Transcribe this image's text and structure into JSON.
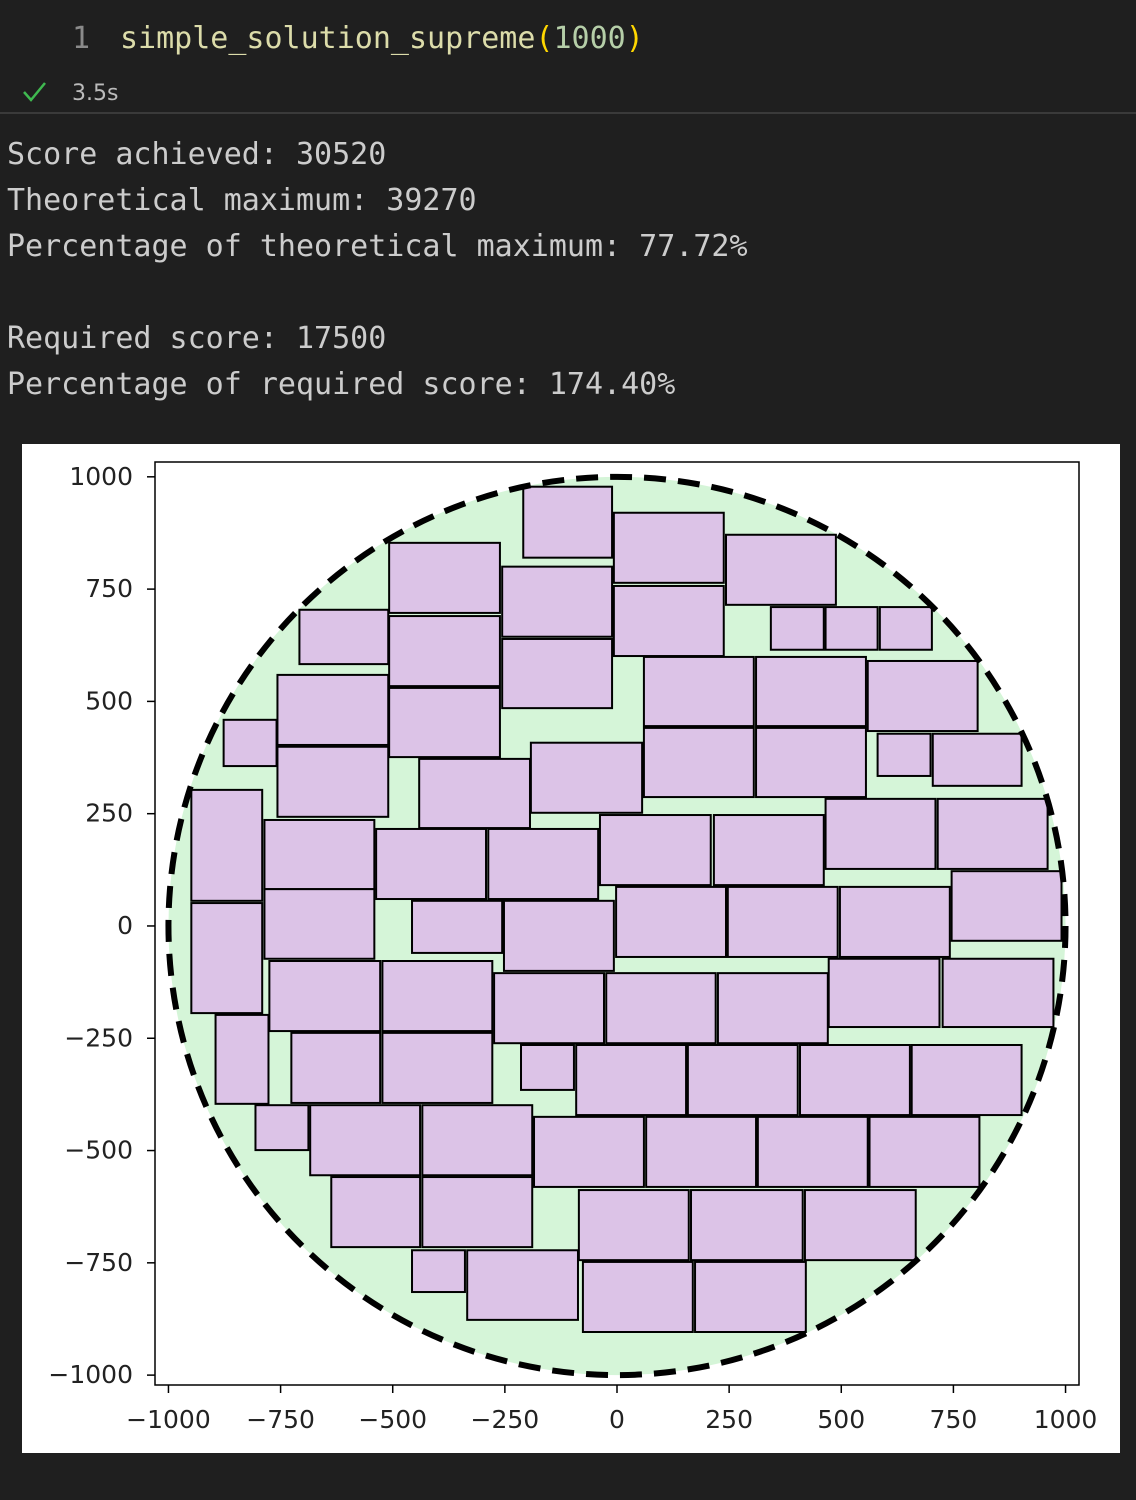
{
  "cell": {
    "line_number": "1",
    "code": [
      "simple_solution_supreme",
      "(",
      "1000",
      ")"
    ],
    "status_time": "3.5s"
  },
  "output": [
    "Score achieved: 30520",
    "Theoretical maximum: 39270",
    "Percentage of theoretical maximum: 77.72%",
    "Required score: 17500",
    "Percentage of required score: 174.40%"
  ],
  "chart_data": {
    "type": "rect_packing",
    "circle_radius": 1000,
    "circle_fill": "#d5f5d8",
    "rect_fill": "#dcc3e7",
    "xlim": [
      -1030,
      1030
    ],
    "ylim": [
      -1022,
      1033
    ],
    "xticks": [
      {
        "value": -1000,
        "label": "−1000"
      },
      {
        "value": -750,
        "label": "−750"
      },
      {
        "value": -500,
        "label": "−500"
      },
      {
        "value": -250,
        "label": "−250"
      },
      0,
      250,
      500,
      750,
      1000
    ],
    "yticks": [
      {
        "value": -1000,
        "label": "−1000"
      },
      {
        "value": -750,
        "label": "−750"
      },
      {
        "value": -500,
        "label": "−500"
      },
      {
        "value": -250,
        "label": "−250"
      },
      0,
      250,
      500,
      750,
      1000
    ],
    "rects": [
      [
        -209,
        820,
        -11,
        978
      ],
      [
        -7,
        764,
        238,
        920
      ],
      [
        243,
        715,
        488,
        871
      ],
      [
        -508,
        697,
        -261,
        853
      ],
      [
        -256,
        644,
        -11,
        800
      ],
      [
        -7,
        601,
        238,
        757
      ],
      [
        343,
        615,
        461,
        710
      ],
      [
        465,
        615,
        581,
        710
      ],
      [
        586,
        615,
        702,
        710
      ],
      [
        -708,
        583,
        -510,
        704
      ],
      [
        -508,
        534,
        -261,
        690
      ],
      [
        -256,
        485,
        -11,
        639
      ],
      [
        60,
        445,
        305,
        599
      ],
      [
        310,
        445,
        555,
        599
      ],
      [
        559,
        434,
        804,
        590
      ],
      [
        -757,
        403,
        -510,
        559
      ],
      [
        -508,
        376,
        -261,
        530
      ],
      [
        -877,
        356,
        -759,
        459
      ],
      [
        60,
        287,
        305,
        441
      ],
      [
        310,
        287,
        555,
        441
      ],
      [
        581,
        334,
        699,
        428
      ],
      [
        704,
        312,
        902,
        428
      ],
      [
        -192,
        252,
        56,
        408
      ],
      [
        -757,
        243,
        -510,
        399
      ],
      [
        -441,
        218,
        -194,
        372
      ],
      [
        -949,
        56,
        -791,
        303
      ],
      [
        465,
        127,
        710,
        283
      ],
      [
        715,
        127,
        960,
        283
      ],
      [
        -38,
        91,
        209,
        247
      ],
      [
        216,
        91,
        461,
        247
      ],
      [
        -786,
        82,
        -541,
        236
      ],
      [
        -537,
        60,
        -292,
        216
      ],
      [
        -287,
        60,
        -42,
        216
      ],
      [
        746,
        -33,
        991,
        122
      ],
      [
        -2,
        -69,
        243,
        87
      ],
      [
        247,
        -69,
        492,
        87
      ],
      [
        497,
        -69,
        742,
        87
      ],
      [
        -786,
        -73,
        -541,
        82
      ],
      [
        -457,
        -60,
        -256,
        56
      ],
      [
        -252,
        -100,
        -7,
        56
      ],
      [
        -949,
        -194,
        -791,
        51
      ],
      [
        472,
        -225,
        719,
        -73
      ],
      [
        726,
        -225,
        973,
        -73
      ],
      [
        -775,
        -234,
        -528,
        -78
      ],
      [
        -523,
        -234,
        -278,
        -78
      ],
      [
        -274,
        -261,
        -29,
        -105
      ],
      [
        -24,
        -261,
        220,
        -105
      ],
      [
        225,
        -261,
        470,
        -105
      ],
      [
        -895,
        -396,
        -777,
        -198
      ],
      [
        -726,
        -394,
        -528,
        -238
      ],
      [
        -523,
        -394,
        -278,
        -238
      ],
      [
        -214,
        -365,
        -96,
        -265
      ],
      [
        -91,
        -421,
        154,
        -265
      ],
      [
        158,
        -421,
        403,
        -265
      ],
      [
        408,
        -421,
        653,
        -265
      ],
      [
        657,
        -421,
        902,
        -265
      ],
      [
        -806,
        -499,
        -688,
        -399
      ],
      [
        -684,
        -555,
        -439,
        -399
      ],
      [
        -434,
        -555,
        -189,
        -399
      ],
      [
        -185,
        -581,
        60,
        -425
      ],
      [
        65,
        -581,
        310,
        -425
      ],
      [
        314,
        -581,
        559,
        -425
      ],
      [
        563,
        -581,
        808,
        -425
      ],
      [
        -637,
        -715,
        -439,
        -559
      ],
      [
        -434,
        -715,
        -189,
        -559
      ],
      [
        -85,
        -744,
        160,
        -588
      ],
      [
        165,
        -744,
        414,
        -588
      ],
      [
        419,
        -744,
        666,
        -588
      ],
      [
        -457,
        -815,
        -339,
        -722
      ],
      [
        -334,
        -877,
        -87,
        -722
      ],
      [
        -76,
        -904,
        169,
        -748
      ],
      [
        174,
        -904,
        421,
        -748
      ]
    ]
  }
}
